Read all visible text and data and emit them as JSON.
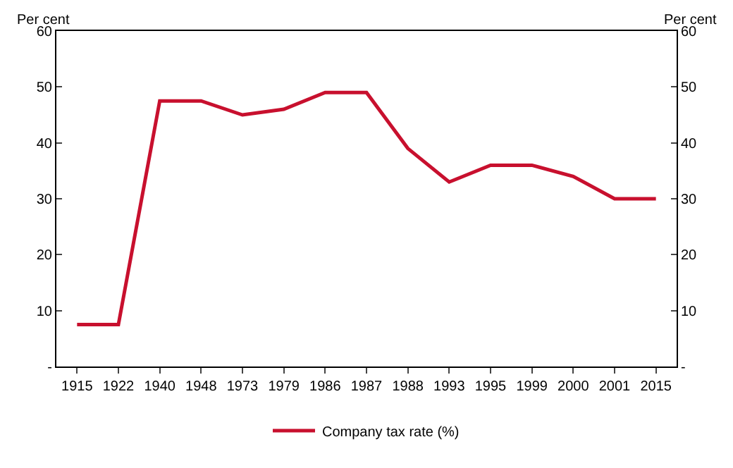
{
  "chart_data": {
    "type": "line",
    "ylabel": "Per cent",
    "y2label": "Per cent",
    "categories": [
      "1915",
      "1922",
      "1940",
      "1948",
      "1973",
      "1979",
      "1986",
      "1987",
      "1988",
      "1993",
      "1995",
      "1999",
      "2000",
      "2001",
      "2015"
    ],
    "series": [
      {
        "name": "Company tax rate (%)",
        "color": "#c8102e",
        "values": [
          7.5,
          7.5,
          47.5,
          47.5,
          45,
          46,
          49,
          49,
          39,
          33,
          36,
          36,
          34,
          30,
          30
        ]
      }
    ],
    "ylim": [
      0,
      60
    ],
    "yticks": [
      {
        "value": 0,
        "label": "-"
      },
      10,
      20,
      30,
      40,
      50,
      60
    ],
    "y2lim": [
      0,
      60
    ],
    "y2ticks": [
      {
        "value": 0,
        "label": "-"
      },
      10,
      20,
      30,
      40,
      50,
      60
    ],
    "legend": "bottom",
    "marker": "none",
    "line_style": "solid"
  }
}
